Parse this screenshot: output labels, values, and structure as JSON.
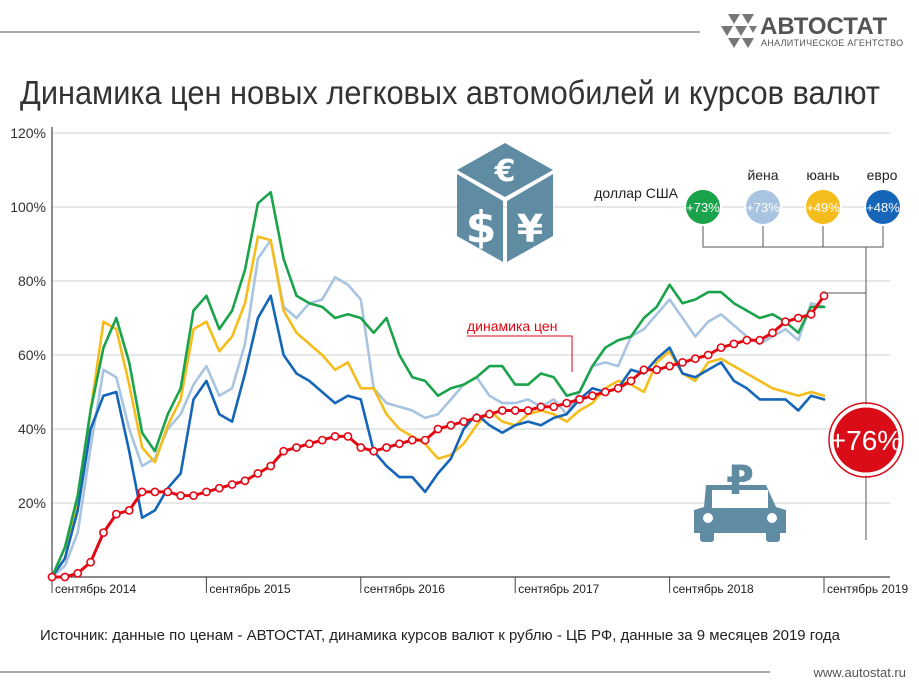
{
  "brand": {
    "name": "АВТОСТАТ",
    "tagline": "АНАЛИТИЧЕСКОЕ АГЕНТСТВО",
    "site": "www.autostat.ru"
  },
  "source_note": "Источник: данные по ценам - АВТОСТАТ, динамика курсов валют к рублю - ЦБ РФ, данные за 9 месяцев 2019 года",
  "colors": {
    "price": "#e30613",
    "usd": "#1aa34a",
    "jpy": "#a9c4e0",
    "cny": "#f5bd1c",
    "eur": "#1565b8",
    "icon": "#5f8ba3"
  },
  "icons": [
    "currency-cube-icon",
    "car-ruble-icon"
  ],
  "chart_data": {
    "type": "line",
    "title": "Динамика цен новых легковых автомобилей и курсов валют",
    "xlabel": "",
    "ylabel": "",
    "ylim": [
      0,
      120
    ],
    "yticks": [
      "20%",
      "40%",
      "60%",
      "80%",
      "100%",
      "120%"
    ],
    "yticks_values": [
      20,
      40,
      60,
      80,
      100,
      120
    ],
    "grid": true,
    "legend_position": "top-right",
    "x_tick_labels": [
      "сентябрь 2014",
      "сентябрь 2015",
      "сентябрь 2016",
      "сентябрь 2017",
      "сентябрь 2018",
      "сентябрь 2019"
    ],
    "x_tick_indices": [
      0,
      12,
      24,
      36,
      48,
      60
    ],
    "price_label": "динамика цен",
    "price_badge": "+76%",
    "series": [
      {
        "key": "usd",
        "name": "доллар США",
        "badge": "+73%",
        "values": [
          0,
          8,
          22,
          45,
          62,
          70,
          58,
          39,
          34,
          44,
          51,
          72,
          76,
          67,
          72,
          83,
          101,
          104,
          86,
          76,
          74,
          73,
          70,
          71,
          70,
          66,
          70,
          60,
          54,
          53,
          49,
          51,
          52,
          54,
          57,
          57,
          52,
          52,
          55,
          54,
          49,
          50,
          57,
          62,
          64,
          65,
          70,
          73,
          79,
          74,
          75,
          77,
          77,
          74,
          72,
          70,
          71,
          69,
          66,
          73,
          73
        ]
      },
      {
        "key": "jpy",
        "name": "йена",
        "badge": "+73%",
        "values": [
          0,
          3,
          12,
          35,
          56,
          54,
          40,
          30,
          32,
          40,
          44,
          52,
          57,
          49,
          51,
          63,
          86,
          91,
          73,
          70,
          74,
          75,
          81,
          79,
          75,
          51,
          47,
          46,
          45,
          43,
          44,
          48,
          52,
          54,
          49,
          47,
          47,
          48,
          46,
          48,
          44,
          50,
          57,
          58,
          57,
          65,
          67,
          71,
          75,
          70,
          65,
          69,
          71,
          68,
          65,
          63,
          65,
          67,
          64,
          74,
          73
        ]
      },
      {
        "key": "cny",
        "name": "юань",
        "badge": "+49%",
        "values": [
          0,
          5,
          20,
          45,
          69,
          67,
          52,
          35,
          31,
          41,
          48,
          67,
          69,
          61,
          65,
          74,
          92,
          91,
          72,
          66,
          63,
          60,
          56,
          58,
          51,
          51,
          44,
          40,
          38,
          36,
          32,
          33,
          36,
          41,
          45,
          42,
          41,
          44,
          45,
          44,
          42,
          45,
          47,
          51,
          53,
          52,
          50,
          58,
          61,
          55,
          53,
          58,
          59,
          57,
          55,
          53,
          51,
          50,
          49,
          50,
          49
        ]
      },
      {
        "key": "eur",
        "name": "евро",
        "badge": "+48%",
        "values": [
          0,
          5,
          18,
          40,
          49,
          50,
          34,
          16,
          18,
          24,
          28,
          48,
          53,
          44,
          42,
          55,
          70,
          76,
          60,
          55,
          53,
          50,
          47,
          49,
          48,
          34,
          30,
          27,
          27,
          23,
          28,
          32,
          40,
          44,
          41,
          39,
          41,
          42,
          41,
          43,
          44,
          48,
          51,
          50,
          51,
          56,
          55,
          59,
          62,
          55,
          54,
          56,
          58,
          53,
          51,
          48,
          48,
          48,
          45,
          49,
          48
        ]
      },
      {
        "key": "price",
        "name": "динамика цен",
        "badge": "+76%",
        "values": [
          0,
          0,
          1,
          4,
          12,
          17,
          18,
          23,
          23,
          23,
          22,
          22,
          23,
          24,
          25,
          26,
          28,
          30,
          34,
          35,
          36,
          37,
          38,
          38,
          35,
          34,
          35,
          36,
          37,
          37,
          40,
          41,
          42,
          43,
          44,
          45,
          45,
          45,
          46,
          46,
          47,
          48,
          49,
          50,
          51,
          53,
          56,
          56,
          57,
          58,
          59,
          60,
          62,
          63,
          64,
          64,
          66,
          69,
          70,
          71,
          76
        ]
      }
    ]
  }
}
